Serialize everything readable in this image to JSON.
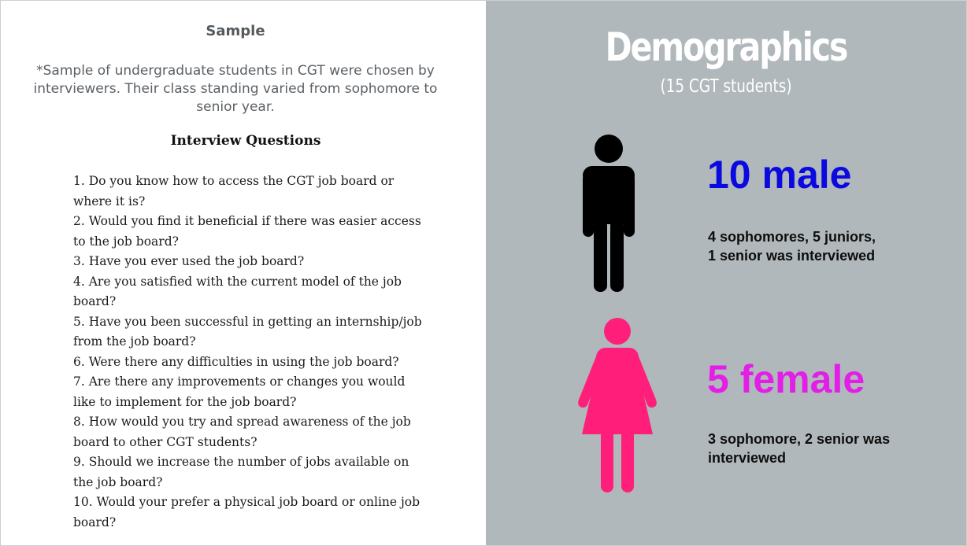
{
  "left_panel": {
    "sample_title": "Sample",
    "sample_description": "*Sample of undergraduate students in CGT were chosen by interviewers. Their class standing varied from sophomore to senior year.",
    "questions_title": "Interview Questions",
    "questions": [
      "1. Do you know how to access the CGT job board or where it is?",
      "2. Would you find it beneficial if there was easier access to the job board?",
      "3. Have you ever used the job board?",
      "4. Are you satisfied with the current model of the job board?",
      "5. Have you been successful in getting an internship/job from the job board?",
      "6. Were there any difficulties in using the job board?",
      "7. Are there any improvements or changes you would like to implement for the job board?",
      "8. How would you try and spread awareness of the job board to other CGT students?",
      "9. Should we increase the number of jobs available on the job board?",
      "10. Would your prefer a physical job board or online job board?"
    ]
  },
  "right_panel": {
    "title": "Demographics",
    "subtitle": "(15 CGT students)",
    "male": {
      "count_label": "10 male",
      "detail": "4 sophomores, 5  juniors,\n1 senior was interviewed",
      "icon": "male-person-icon",
      "color": "#0a0ae0",
      "icon_color": "#000000"
    },
    "female": {
      "count_label": "5 female",
      "detail": "3 sophomore, 2 senior was\ninterviewed",
      "icon": "female-person-icon",
      "color": "#e31ee6",
      "icon_color": "#ff1f7a"
    },
    "background_color": "#b1b8bb"
  }
}
